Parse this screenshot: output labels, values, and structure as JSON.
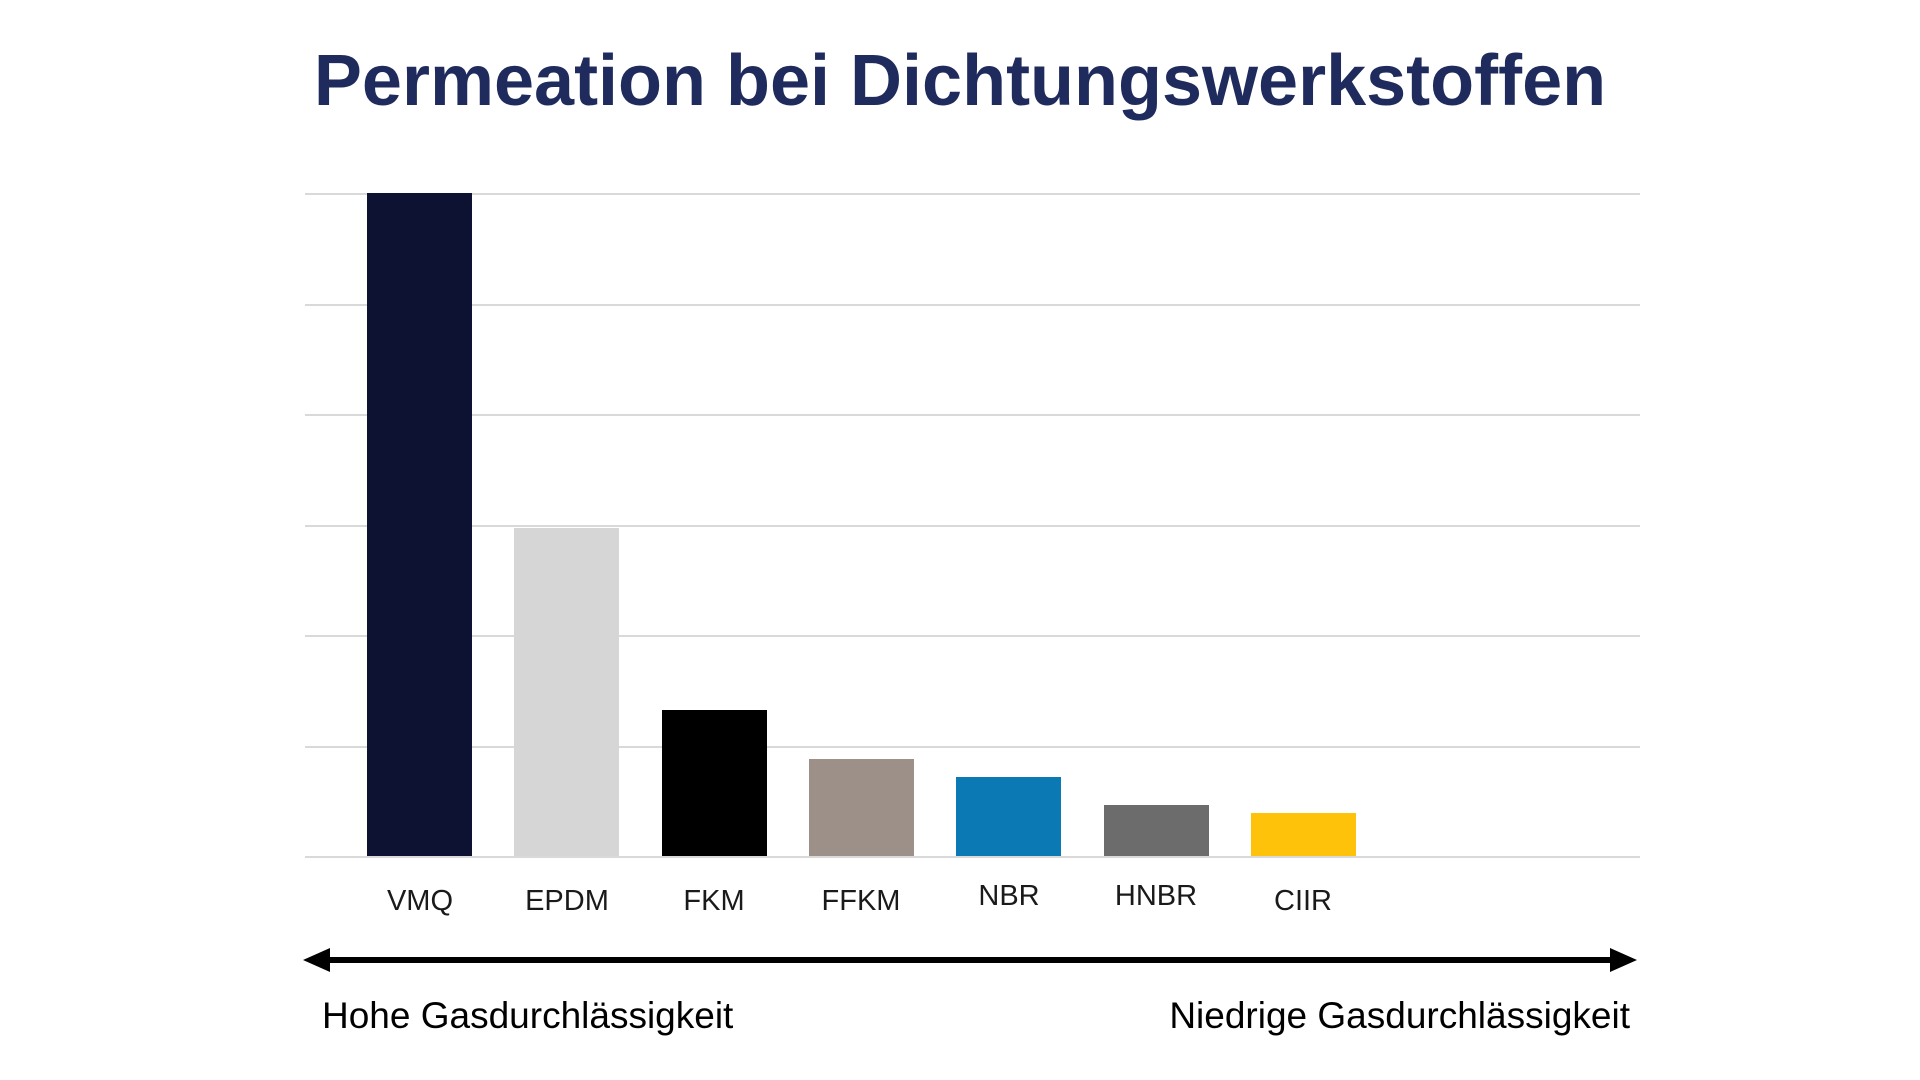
{
  "title": {
    "text": "Permeation bei Dichtungswerkstoffen",
    "color": "#1F2B5C"
  },
  "chart_data": {
    "type": "bar",
    "title": "Permeation bei Dichtungswerkstoffen",
    "categories": [
      "VMQ",
      "EPDM",
      "FKM",
      "FFKM",
      "NBR",
      "HNBR",
      "CIIR"
    ],
    "values": [
      100,
      49.5,
      22.0,
      14.6,
      11.9,
      7.7,
      6.5
    ],
    "value_note": "relative bar heights in % of tallest bar; no numeric axis labels shown",
    "bar_colors": [
      "#0D1233",
      "#D6D6D6",
      "#000000",
      "#9C9088",
      "#0B79B3",
      "#6C6C6C",
      "#FFC20A"
    ],
    "raised_labels": [
      "NBR",
      "HNBR"
    ],
    "xlabel": "",
    "ylabel": "",
    "ylim": [
      0,
      100
    ],
    "grid": true,
    "gridline_count": 7,
    "gridline_color": "#D9D9D9",
    "tick_labels_shown": false,
    "legend": false
  },
  "footer": {
    "left_label": "Hohe Gasdurchlässigkeit",
    "right_label": "Niedrige Gasdurchlässigkeit",
    "arrow_color": "#000000"
  }
}
